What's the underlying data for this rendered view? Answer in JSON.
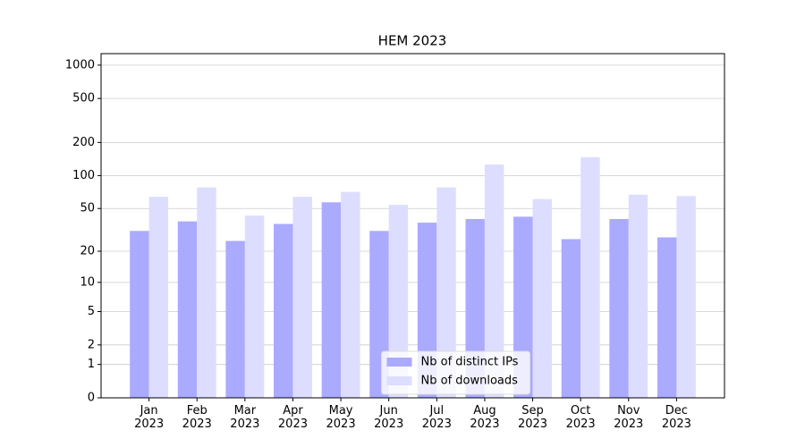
{
  "chart_data": {
    "type": "bar",
    "title": "HEM 2023",
    "categories": [
      "Jan\n2023",
      "Feb\n2023",
      "Mar\n2023",
      "Apr\n2023",
      "May\n2023",
      "Jun\n2023",
      "Jul\n2023",
      "Aug\n2023",
      "Sep\n2023",
      "Oct\n2023",
      "Nov\n2023",
      "Dec\n2023"
    ],
    "series": [
      {
        "name": "Nb of distinct IPs",
        "color": "#aaaaff",
        "values": [
          31,
          38,
          25,
          36,
          57,
          31,
          37,
          40,
          42,
          26,
          40,
          27
        ]
      },
      {
        "name": "Nb of downloads",
        "color": "#ddddff",
        "values": [
          64,
          78,
          43,
          64,
          71,
          54,
          78,
          126,
          61,
          147,
          67,
          65
        ]
      }
    ],
    "yscale": "log1p",
    "ylim": [
      0,
      1270
    ],
    "yticks": [
      0,
      1,
      2,
      5,
      10,
      20,
      50,
      100,
      200,
      500,
      1000
    ],
    "grid": true,
    "legend": "lower center"
  }
}
